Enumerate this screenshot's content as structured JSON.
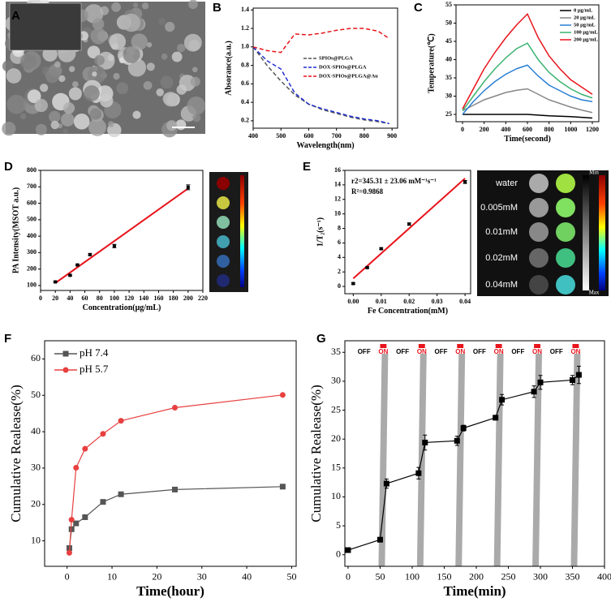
{
  "panel_a": {
    "label": "A"
  },
  "chart_data": [
    {
      "type": "line",
      "label": "B",
      "xlabel": "Wavelength(nm)",
      "ylabel": "Absorance(a.u.)",
      "xlim": [
        400,
        920
      ],
      "ylim": [
        0.12,
        1.42
      ],
      "xticks": [
        400,
        500,
        600,
        700,
        800,
        900
      ],
      "yticks": [
        0.2,
        0.4,
        0.6,
        0.8,
        {
          "value": 1,
          "label": "1.0"
        },
        1.2,
        1.4
      ],
      "x": [
        400,
        450,
        500,
        550,
        600,
        650,
        700,
        750,
        800,
        850,
        890
      ],
      "legend": "center-right",
      "series": [
        {
          "name": "SPIOs@PLGA",
          "color": "#555555",
          "dash": true,
          "values": [
            1.0,
            0.8,
            0.63,
            0.48,
            0.38,
            0.32,
            0.28,
            0.24,
            0.21,
            0.19,
            0.17
          ]
        },
        {
          "name": "DOX-SPIOs@PLGA",
          "color": "#1f2fd0",
          "dash": true,
          "values": [
            1.0,
            0.85,
            0.76,
            0.5,
            0.38,
            0.33,
            0.29,
            0.25,
            0.22,
            0.2,
            0.17
          ]
        },
        {
          "name": "DOX-SPIOs@PLGA@Au",
          "color": "#e8141c",
          "dash": true,
          "values": [
            1.0,
            0.96,
            0.94,
            1.14,
            1.13,
            1.15,
            1.18,
            1.2,
            1.2,
            1.17,
            1.09
          ]
        }
      ]
    },
    {
      "type": "line",
      "label": "C",
      "xlabel": "Time(second)",
      "ylabel": "Temperature(℃)",
      "xlim": [
        -60,
        1260
      ],
      "ylim": [
        23,
        55
      ],
      "xticks": [
        0,
        200,
        400,
        600,
        800,
        1000,
        1200
      ],
      "yticks": [
        25,
        30,
        35,
        40,
        45,
        50,
        55
      ],
      "x": [
        0,
        100,
        200,
        300,
        400,
        500,
        600,
        700,
        800,
        900,
        1000,
        1100,
        1200
      ],
      "legend": "top-right",
      "series": [
        {
          "name": "0 μg/mL",
          "color": "#000000",
          "values": [
            25,
            25,
            25,
            25,
            25,
            25,
            25,
            24.8,
            24.6,
            24.5,
            24.4,
            24.2,
            24
          ]
        },
        {
          "name": "20 μg/mL",
          "color": "#888888",
          "values": [
            26,
            27.5,
            29,
            30,
            31,
            31.6,
            32,
            30.5,
            29,
            28,
            27,
            26.2,
            25.5
          ]
        },
        {
          "name": "50 μg/mL",
          "color": "#2a7fd4",
          "values": [
            25,
            28.5,
            31.5,
            34,
            36,
            37.5,
            38.5,
            35.5,
            33,
            31.5,
            30,
            29,
            28.5
          ]
        },
        {
          "name": "100 μg/mL",
          "color": "#3cb371",
          "values": [
            26,
            30,
            34,
            37.5,
            40.5,
            43,
            44.5,
            40,
            36.5,
            34,
            32,
            30.5,
            29.5
          ]
        },
        {
          "name": "200 μg/mL",
          "color": "#e8141c",
          "values": [
            26.5,
            32,
            37.5,
            42,
            46,
            49.5,
            52.5,
            46,
            41,
            37.5,
            34.5,
            32.5,
            30.5
          ]
        }
      ]
    },
    {
      "type": "scatter",
      "label": "D",
      "xlabel": "Concentration(μg/mL)",
      "ylabel": "PA Intensity(MSOT a.u.)",
      "xlim": [
        0,
        220
      ],
      "ylim": [
        70,
        800
      ],
      "xticks": [
        0,
        20,
        40,
        60,
        80,
        100,
        120,
        140,
        160,
        180,
        200,
        220
      ],
      "yticks": [
        100,
        200,
        300,
        400,
        500,
        600,
        700,
        800
      ],
      "x": [
        20,
        40,
        50,
        67,
        100,
        200
      ],
      "series": [
        {
          "color": "#000000",
          "marker": "square",
          "values": [
            122,
            162,
            225,
            288,
            340,
            697
          ],
          "errors": [
            3,
            3,
            4,
            5,
            10,
            15
          ]
        }
      ],
      "fit": {
        "color": "#e8141c",
        "x": [
          20,
          200
        ],
        "values": [
          115,
          690
        ]
      }
    },
    {
      "type": "scatter",
      "label": "E",
      "xlabel": "Fe Concentration(mM)",
      "ylabel": "1/T₂(s⁻¹)",
      "xlim": [
        -0.003,
        0.042
      ],
      "ylim": [
        -1,
        16
      ],
      "xticks": [
        {
          "value": 0,
          "label": "0.00"
        },
        0.01,
        0.02,
        0.03,
        0.04
      ],
      "yticks": [
        0,
        2,
        4,
        6,
        8,
        10,
        12,
        14,
        16
      ],
      "x": [
        0,
        0.005,
        0.01,
        0.02,
        0.04
      ],
      "annotations": [
        "r2=345.31 ± 23.06 mM⁻¹s⁻¹",
        "R²=0.9868"
      ],
      "series": [
        {
          "color": "#000000",
          "marker": "square",
          "values": [
            0.4,
            2.6,
            5.2,
            8.6,
            14.4
          ],
          "errors": [
            0.1,
            0.1,
            0.1,
            0.15,
            0.2
          ]
        }
      ],
      "fit": {
        "color": "#e8141c",
        "x": [
          0,
          0.04
        ],
        "values": [
          1.1,
          14.9
        ]
      },
      "side_image": {
        "labels": [
          "water",
          "0.005mM",
          "0.01mM",
          "0.02mM",
          "0.04mM"
        ],
        "scale": [
          "Min",
          "Max"
        ]
      }
    },
    {
      "type": "line",
      "label": "F",
      "xlabel": "Time(hour)",
      "ylabel": "Cumulative Realease(%)",
      "xlim": [
        -5,
        51
      ],
      "ylim": [
        3,
        65
      ],
      "xticks": [
        0,
        10,
        20,
        30,
        40,
        50
      ],
      "yticks": [
        10,
        20,
        30,
        40,
        50,
        60
      ],
      "x": [
        0.5,
        1,
        2,
        4,
        8,
        12,
        24,
        48
      ],
      "legend": "top-left",
      "series": [
        {
          "name": "pH 7.4",
          "color": "#555555",
          "marker": "square",
          "values": [
            8,
            13.2,
            14.8,
            16.5,
            20.7,
            22.8,
            24.1,
            24.9
          ]
        },
        {
          "name": "pH 5.7",
          "color": "#e84040",
          "marker": "circle",
          "values": [
            6.7,
            15.8,
            30.1,
            35.3,
            39.4,
            43,
            46.6,
            50.1
          ]
        }
      ]
    },
    {
      "type": "line",
      "label": "G",
      "xlabel": "Time(min)",
      "ylabel": "Cumulative Realease(%)",
      "xlim": [
        -5,
        400
      ],
      "ylim": [
        -2,
        37
      ],
      "xticks": [
        0,
        50,
        100,
        150,
        200,
        250,
        300,
        350,
        400
      ],
      "yticks": [
        0,
        5,
        10,
        15,
        20,
        25,
        30,
        35
      ],
      "x": [
        0,
        50,
        60,
        110,
        120,
        170,
        180,
        230,
        240,
        290,
        300,
        350,
        360
      ],
      "on_intervals": [
        [
          50,
          60
        ],
        [
          110,
          120
        ],
        [
          170,
          180
        ],
        [
          230,
          240
        ],
        [
          290,
          300
        ],
        [
          350,
          360
        ]
      ],
      "switch_labels": [
        "OFF",
        "ON",
        "OFF",
        "ON",
        "OFF",
        "ON",
        "OFF",
        "ON",
        "OFF",
        "ON",
        "OFF",
        "ON"
      ],
      "series": [
        {
          "color": "#000000",
          "marker": "square",
          "values": [
            0.8,
            2.6,
            12.3,
            14.1,
            19.4,
            19.7,
            21.9,
            23.7,
            26.8,
            28.2,
            29.8,
            30.2,
            31.1
          ],
          "errors": [
            0.3,
            0.2,
            0.8,
            1,
            1.3,
            0.8,
            0.5,
            0.4,
            0.9,
            1,
            1.2,
            0.8,
            1.5
          ]
        }
      ]
    }
  ]
}
